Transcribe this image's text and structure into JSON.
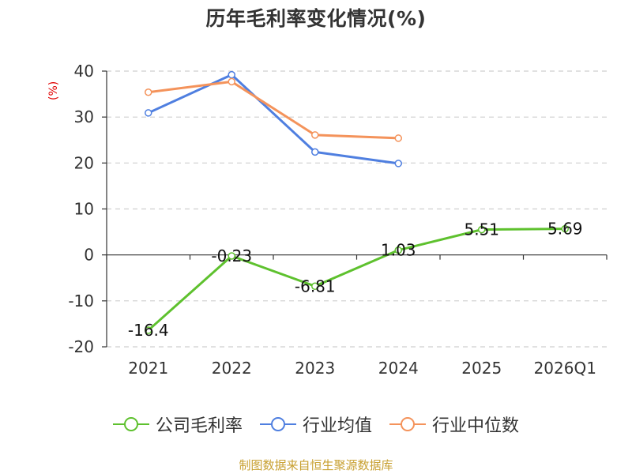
{
  "chart_data": {
    "type": "line",
    "title": "历年毛利率变化情况(%)",
    "ylabel": "(%)",
    "categories": [
      "2021",
      "2022",
      "2023",
      "2024",
      "2025",
      "2026Q1"
    ],
    "ylim": [
      -20,
      40
    ],
    "yticks": [
      40,
      30,
      20,
      10,
      0,
      -10,
      -20
    ],
    "grid": true,
    "legend_position": "bottom",
    "series": [
      {
        "name": "公司毛利率",
        "color": "#5ec12e",
        "show_labels": true,
        "values": [
          -16.4,
          -0.23,
          -6.81,
          1.03,
          5.51,
          5.69
        ],
        "labels": [
          "-16.4",
          "-0.23",
          "-6.81",
          "1.03",
          "5.51",
          "5.69"
        ]
      },
      {
        "name": "行业均值",
        "color": "#4f7fe0",
        "show_labels": false,
        "values": [
          30.9,
          39.2,
          22.4,
          19.9,
          null,
          null
        ]
      },
      {
        "name": "行业中位数",
        "color": "#f4935b",
        "show_labels": false,
        "values": [
          35.4,
          37.7,
          26.1,
          25.4,
          null,
          null
        ]
      }
    ]
  },
  "source": "制图数据来自恒生聚源数据库"
}
